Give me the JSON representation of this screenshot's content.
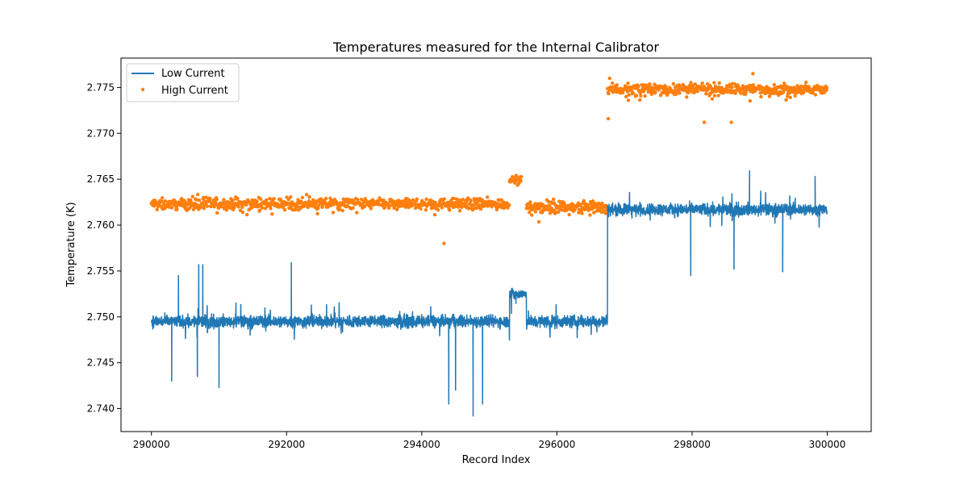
{
  "chart_data": {
    "type": "line",
    "title": "Temperatures measured for the Internal Calibrator",
    "xlabel": "Record Index",
    "ylabel": "Temperature (K)",
    "xlim": [
      289550,
      300650
    ],
    "ylim": [
      2.7375,
      2.7782
    ],
    "xticks": [
      290000,
      292000,
      294000,
      296000,
      298000,
      300000
    ],
    "yticks": [
      2.74,
      2.745,
      2.75,
      2.755,
      2.76,
      2.765,
      2.77,
      2.775
    ],
    "grid": false,
    "legend_position": "top-left",
    "series": [
      {
        "name": "Low Current",
        "style": "line",
        "color": "#1f77b4",
        "segments": [
          {
            "x_start": 290000,
            "x_end": 295300,
            "center": 2.7495,
            "spread": 1.0
          },
          {
            "x_start": 295300,
            "x_end": 295550,
            "center": 2.7525,
            "spread": 0.8
          },
          {
            "x_start": 295550,
            "x_end": 296750,
            "center": 2.7495,
            "spread": 1.0
          },
          {
            "x_start": 296750,
            "x_end": 300000,
            "center": 2.7617,
            "spread": 1.0
          }
        ],
        "spikes": [
          {
            "x": 290300,
            "y": 2.743
          },
          {
            "x": 290400,
            "y": 2.7545
          },
          {
            "x": 290680,
            "y": 2.7435
          },
          {
            "x": 290700,
            "y": 2.7557
          },
          {
            "x": 290760,
            "y": 2.7557
          },
          {
            "x": 291000,
            "y": 2.7423
          },
          {
            "x": 292070,
            "y": 2.7559
          },
          {
            "x": 294400,
            "y": 2.7405
          },
          {
            "x": 294500,
            "y": 2.742
          },
          {
            "x": 294760,
            "y": 2.7392
          },
          {
            "x": 294900,
            "y": 2.7405
          },
          {
            "x": 297980,
            "y": 2.7545
          },
          {
            "x": 298620,
            "y": 2.7552
          },
          {
            "x": 299340,
            "y": 2.7549
          },
          {
            "x": 298850,
            "y": 2.7659
          },
          {
            "x": 299820,
            "y": 2.7653
          }
        ]
      },
      {
        "name": "High Current",
        "style": "scatter",
        "color": "#ff7f0e",
        "segments": [
          {
            "x_start": 290000,
            "x_end": 295300,
            "center": 2.7623,
            "spread": 0.9
          },
          {
            "x_start": 295300,
            "x_end": 295480,
            "center": 2.765,
            "spread": 0.5
          },
          {
            "x_start": 295550,
            "x_end": 296750,
            "center": 2.762,
            "spread": 0.9
          },
          {
            "x_start": 296750,
            "x_end": 300000,
            "center": 2.7748,
            "spread": 0.9
          }
        ],
        "spikes": [
          {
            "x": 294330,
            "y": 2.758
          },
          {
            "x": 296760,
            "y": 2.7716
          },
          {
            "x": 296780,
            "y": 2.776
          },
          {
            "x": 298180,
            "y": 2.7712
          },
          {
            "x": 298580,
            "y": 2.7712
          },
          {
            "x": 298900,
            "y": 2.7765
          }
        ]
      }
    ]
  }
}
